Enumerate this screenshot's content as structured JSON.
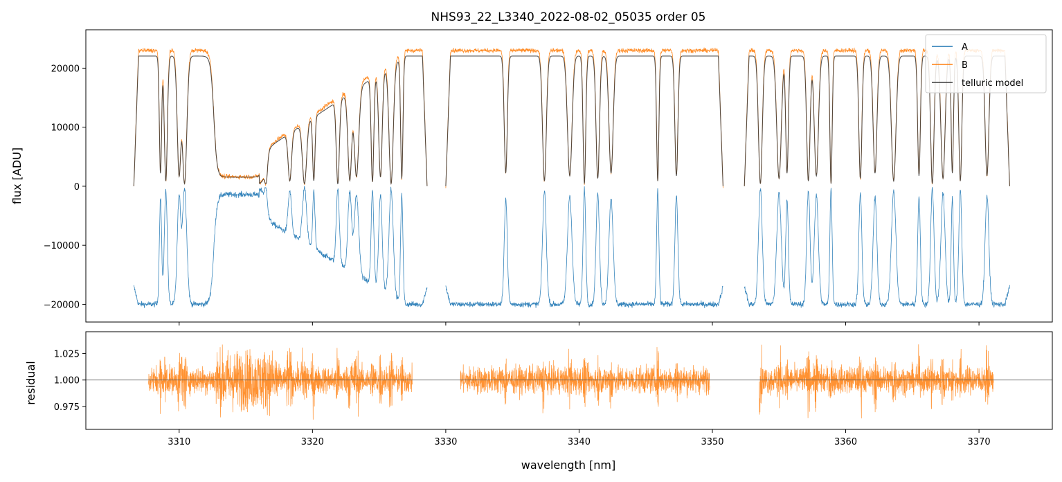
{
  "chart_data": [
    {
      "type": "line",
      "title": "NHS93_22_L3340_2022-08-02_05035  order 05",
      "xlabel": "",
      "ylabel": "flux [ADU]",
      "xlim": [
        3303,
        3375.5
      ],
      "ylim": [
        -23000,
        26500
      ],
      "y_ticks": [
        20000,
        10000,
        0,
        -10000,
        -20000
      ],
      "y_tick_labels": [
        "20000",
        "10000",
        "0",
        "−10000",
        "−20000"
      ],
      "x_ticks": [
        3310,
        3320,
        3330,
        3340,
        3350,
        3360,
        3370
      ],
      "x_tick_labels_shown": false,
      "grid": false,
      "legend_position": "top-right",
      "legend": [
        "A",
        "B",
        "telluric model"
      ],
      "colors": {
        "A": "#1f77b4",
        "B": "#ff7f0e",
        "telluric model": "#3a3a3a"
      },
      "segments": [
        [
          3306.6,
          3328.6
        ],
        [
          3330.0,
          3350.8
        ],
        [
          3352.4,
          3372.3
        ]
      ],
      "series": [
        {
          "name": "A",
          "continuum": -20000,
          "note_shape": "inverted flux (emission-like peaks at telluric lines)"
        },
        {
          "name": "B",
          "continuum": 23000
        },
        {
          "name": "telluric model",
          "continuum": 22500
        }
      ],
      "absorption_lines_nm": [
        3308.6,
        3309.0,
        3310.0,
        3310.4,
        3316.5,
        3318.3,
        3319.4,
        3320.1,
        3321.9,
        3322.8,
        3323.3,
        3324.5,
        3325.1,
        3325.9,
        3326.7,
        3334.5,
        3337.4,
        3339.3,
        3340.4,
        3341.4,
        3342.4,
        3345.9,
        3347.3,
        3353.6,
        3355.0,
        3355.6,
        3357.2,
        3357.8,
        3358.9,
        3361.1,
        3362.2,
        3363.6,
        3365.5,
        3366.5,
        3367.3,
        3368.0,
        3368.6,
        3370.6
      ],
      "broad_bands_nm": [
        [
          3312.6,
          3316.5
        ]
      ]
    },
    {
      "type": "line",
      "title": "",
      "xlabel": "wavelength [nm]",
      "ylabel": "residual",
      "xlim": [
        3303,
        3375.5
      ],
      "ylim": [
        0.9535,
        1.0455
      ],
      "y_ticks": [
        1.025,
        1.0,
        0.975
      ],
      "y_tick_labels": [
        "1.025",
        "1.000",
        "0.975"
      ],
      "x_ticks": [
        3310,
        3320,
        3330,
        3340,
        3350,
        3360,
        3370
      ],
      "x_tick_labels": [
        "3310",
        "3320",
        "3330",
        "3340",
        "3350",
        "3360",
        "3370"
      ],
      "reference_line": 1.0,
      "grid": false,
      "segments": [
        [
          3307.7,
          3327.5
        ],
        [
          3331.1,
          3349.8
        ],
        [
          3353.5,
          3371.1
        ]
      ],
      "series": [
        {
          "name": "B",
          "center": 1.0,
          "scatter": 0.012
        }
      ]
    }
  ]
}
